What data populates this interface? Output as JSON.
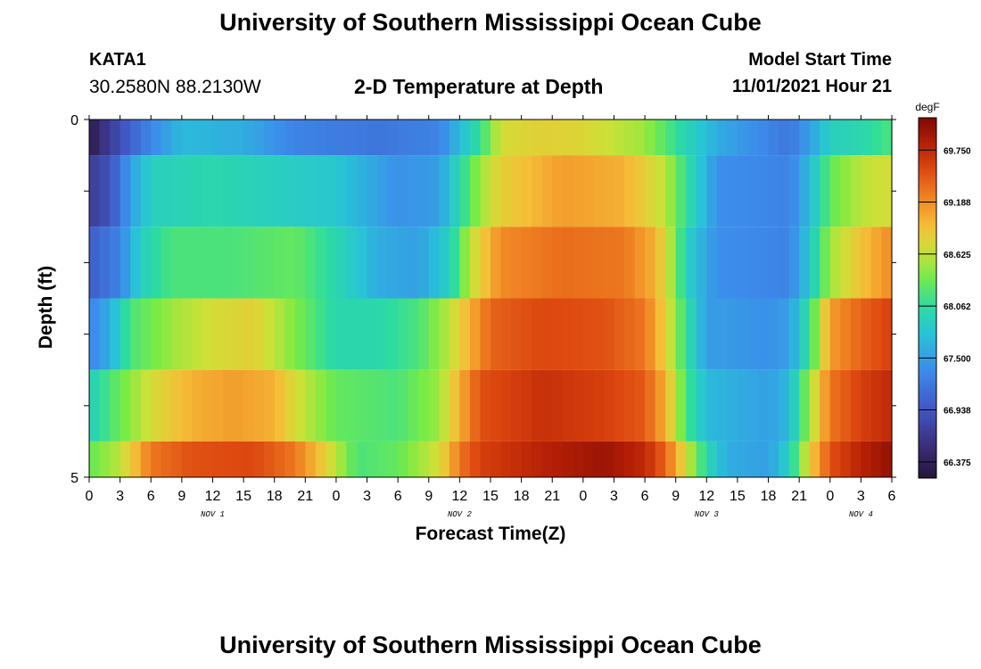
{
  "page": {
    "title": "University of Southern Mississippi Ocean Cube",
    "station": "KATA1",
    "coords": "30.2580N  88.2130W",
    "subtitle": "2-D Temperature at Depth",
    "model_start_label": "Model Start Time",
    "model_start_value": "11/01/2021 Hour 21",
    "bottom_title": "University of Southern Mississippi Ocean Cube"
  },
  "chart_data": {
    "type": "heatmap",
    "title": "2-D Temperature at Depth",
    "xlabel": "Forecast Time(Z)",
    "ylabel": "Depth (ft)",
    "x_hours_range": [
      0,
      78
    ],
    "x_tick_labels": [
      "0",
      "3",
      "6",
      "9",
      "12",
      "15",
      "18",
      "21",
      "0",
      "3",
      "6",
      "9",
      "12",
      "15",
      "18",
      "21",
      "0",
      "3",
      "6",
      "9",
      "12",
      "15",
      "18",
      "21",
      "0",
      "3",
      "6"
    ],
    "day_labels": [
      {
        "label": "NOV 1",
        "hour": 12
      },
      {
        "label": "NOV 2",
        "hour": 36
      },
      {
        "label": "NOV 3",
        "hour": 60
      },
      {
        "label": "NOV 4",
        "hour": 75
      }
    ],
    "y_range": [
      0,
      5
    ],
    "y_tick_labels": [
      "0",
      "5"
    ],
    "depth_levels": [
      0,
      1,
      2,
      3,
      4,
      5
    ],
    "colorbar": {
      "unit": "degF",
      "min": 66.2,
      "max": 70.1,
      "tick_values": [
        69.75,
        69.188,
        68.625,
        68.062,
        67.5,
        66.938,
        66.375
      ],
      "tick_labels": [
        "69.750",
        "69.188",
        "68.625",
        "68.062",
        "67.500",
        "66.938",
        "66.375"
      ]
    },
    "temperature_rows": [
      {
        "depth_band": "0-0.5",
        "keyframes": [
          [
            0,
            66.3
          ],
          [
            2,
            66.7
          ],
          [
            5,
            67.2
          ],
          [
            9,
            67.7
          ],
          [
            15,
            67.6
          ],
          [
            20,
            67.3
          ],
          [
            28,
            67.2
          ],
          [
            34,
            67.3
          ],
          [
            36,
            67.7
          ],
          [
            38,
            68.1
          ],
          [
            40,
            68.7
          ],
          [
            44,
            68.8
          ],
          [
            48,
            68.75
          ],
          [
            54,
            68.5
          ],
          [
            57,
            68.1
          ],
          [
            61,
            67.6
          ],
          [
            68,
            67.2
          ],
          [
            70,
            67.5
          ],
          [
            72,
            67.9
          ],
          [
            75,
            68.0
          ],
          [
            78,
            68.2
          ]
        ]
      },
      {
        "depth_band": "0.5-1.5",
        "keyframes": [
          [
            0,
            66.7
          ],
          [
            2,
            66.9
          ],
          [
            4,
            67.5
          ],
          [
            6,
            67.9
          ],
          [
            12,
            68.0
          ],
          [
            18,
            67.9
          ],
          [
            24,
            67.8
          ],
          [
            30,
            67.4
          ],
          [
            34,
            67.5
          ],
          [
            36,
            68.0
          ],
          [
            38,
            68.5
          ],
          [
            40,
            68.8
          ],
          [
            46,
            69.1
          ],
          [
            52,
            69.0
          ],
          [
            56,
            68.6
          ],
          [
            58,
            68.1
          ],
          [
            61,
            67.4
          ],
          [
            68,
            67.3
          ],
          [
            70,
            67.7
          ],
          [
            72,
            68.3
          ],
          [
            75,
            68.6
          ],
          [
            78,
            68.7
          ]
        ]
      },
      {
        "depth_band": "1.5-2.5",
        "keyframes": [
          [
            0,
            67.0
          ],
          [
            3,
            67.3
          ],
          [
            5,
            67.9
          ],
          [
            8,
            68.2
          ],
          [
            14,
            68.2
          ],
          [
            20,
            68.3
          ],
          [
            24,
            68.0
          ],
          [
            28,
            67.6
          ],
          [
            32,
            67.5
          ],
          [
            35,
            67.9
          ],
          [
            37,
            68.6
          ],
          [
            40,
            69.2
          ],
          [
            46,
            69.35
          ],
          [
            52,
            69.3
          ],
          [
            55,
            69.0
          ],
          [
            57,
            68.4
          ],
          [
            58,
            67.9
          ],
          [
            61,
            67.4
          ],
          [
            68,
            67.3
          ],
          [
            70,
            67.8
          ],
          [
            72,
            68.5
          ],
          [
            75,
            68.9
          ],
          [
            78,
            69.2
          ]
        ]
      },
      {
        "depth_band": "2.5-3.5",
        "keyframes": [
          [
            0,
            67.3
          ],
          [
            2,
            67.6
          ],
          [
            4,
            68.2
          ],
          [
            8,
            68.5
          ],
          [
            12,
            68.7
          ],
          [
            16,
            68.8
          ],
          [
            20,
            68.4
          ],
          [
            24,
            68.0
          ],
          [
            28,
            68.0
          ],
          [
            32,
            68.2
          ],
          [
            35,
            68.6
          ],
          [
            37,
            69.0
          ],
          [
            39,
            69.4
          ],
          [
            44,
            69.55
          ],
          [
            50,
            69.5
          ],
          [
            54,
            69.3
          ],
          [
            56,
            68.8
          ],
          [
            58,
            68.1
          ],
          [
            60,
            67.5
          ],
          [
            66,
            67.4
          ],
          [
            68,
            67.5
          ],
          [
            70,
            68.1
          ],
          [
            72,
            69.1
          ],
          [
            75,
            69.4
          ],
          [
            78,
            69.6
          ]
        ]
      },
      {
        "depth_band": "3.5-4.5",
        "keyframes": [
          [
            0,
            67.9
          ],
          [
            2,
            68.2
          ],
          [
            6,
            68.7
          ],
          [
            10,
            69.0
          ],
          [
            14,
            69.1
          ],
          [
            18,
            69.0
          ],
          [
            20,
            68.7
          ],
          [
            24,
            68.3
          ],
          [
            30,
            68.2
          ],
          [
            34,
            68.5
          ],
          [
            36,
            69.0
          ],
          [
            38,
            69.5
          ],
          [
            44,
            69.7
          ],
          [
            50,
            69.6
          ],
          [
            54,
            69.45
          ],
          [
            56,
            69.0
          ],
          [
            58,
            68.2
          ],
          [
            60,
            67.7
          ],
          [
            66,
            67.5
          ],
          [
            68,
            67.7
          ],
          [
            70,
            68.5
          ],
          [
            72,
            69.3
          ],
          [
            75,
            69.6
          ],
          [
            78,
            69.75
          ]
        ]
      },
      {
        "depth_band": "4.5-5",
        "keyframes": [
          [
            0,
            68.3
          ],
          [
            3,
            68.6
          ],
          [
            6,
            69.3
          ],
          [
            10,
            69.5
          ],
          [
            16,
            69.55
          ],
          [
            20,
            69.3
          ],
          [
            23,
            68.8
          ],
          [
            26,
            68.2
          ],
          [
            30,
            68.3
          ],
          [
            34,
            68.7
          ],
          [
            36,
            69.3
          ],
          [
            38,
            69.6
          ],
          [
            44,
            69.8
          ],
          [
            50,
            69.95
          ],
          [
            54,
            69.75
          ],
          [
            56,
            69.4
          ],
          [
            58,
            68.7
          ],
          [
            60,
            68.0
          ],
          [
            62,
            67.6
          ],
          [
            66,
            67.5
          ],
          [
            68,
            67.9
          ],
          [
            70,
            68.8
          ],
          [
            72,
            69.5
          ],
          [
            75,
            69.8
          ],
          [
            78,
            70.0
          ]
        ]
      }
    ]
  }
}
